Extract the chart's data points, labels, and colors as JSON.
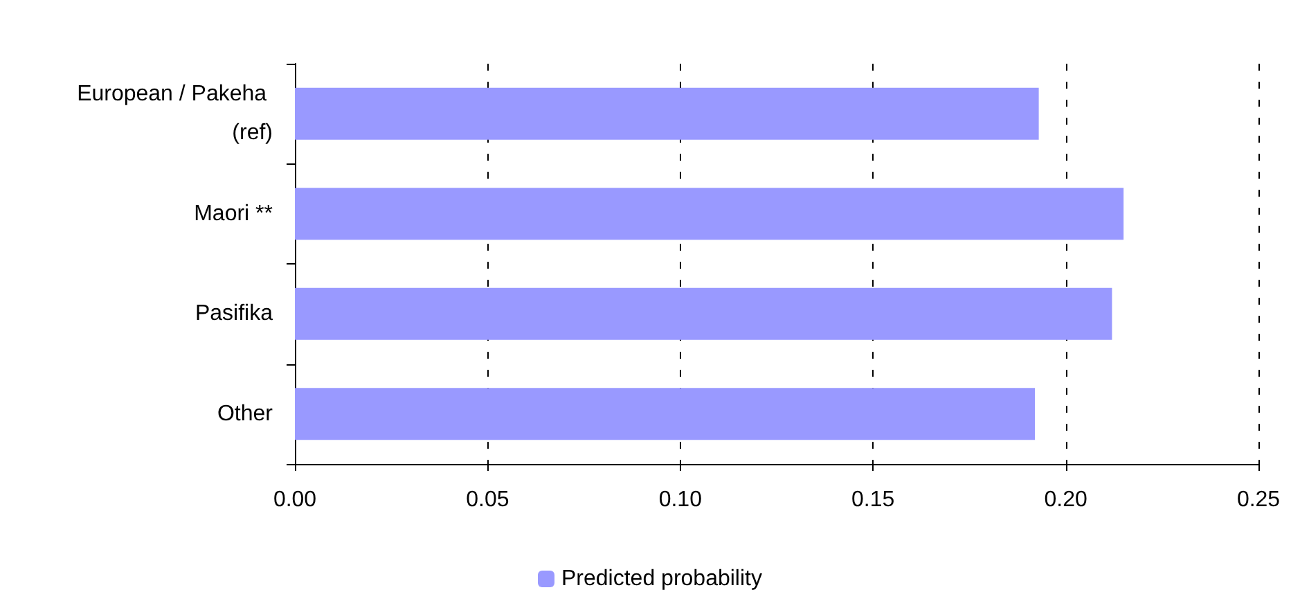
{
  "chart_data": {
    "type": "bar",
    "orientation": "horizontal",
    "categories": [
      "European / Pakeha (ref)",
      "Maori **",
      "Pasifika",
      "Other"
    ],
    "series": [
      {
        "name": "Predicted probability",
        "color": "#9999ff",
        "values": [
          0.193,
          0.215,
          0.212,
          0.192
        ]
      }
    ],
    "xlim": [
      0,
      0.25
    ],
    "xticks": [
      {
        "value": 0,
        "label": "0.00"
      },
      {
        "value": 0.05,
        "label": "0.05"
      },
      {
        "value": 0.1,
        "label": "0.10"
      },
      {
        "value": 0.15,
        "label": "0.15"
      },
      {
        "value": 0.2,
        "label": "0.20"
      },
      {
        "value": 0.25,
        "label": "0.25"
      }
    ],
    "grid": "x",
    "legend": "bottom"
  }
}
